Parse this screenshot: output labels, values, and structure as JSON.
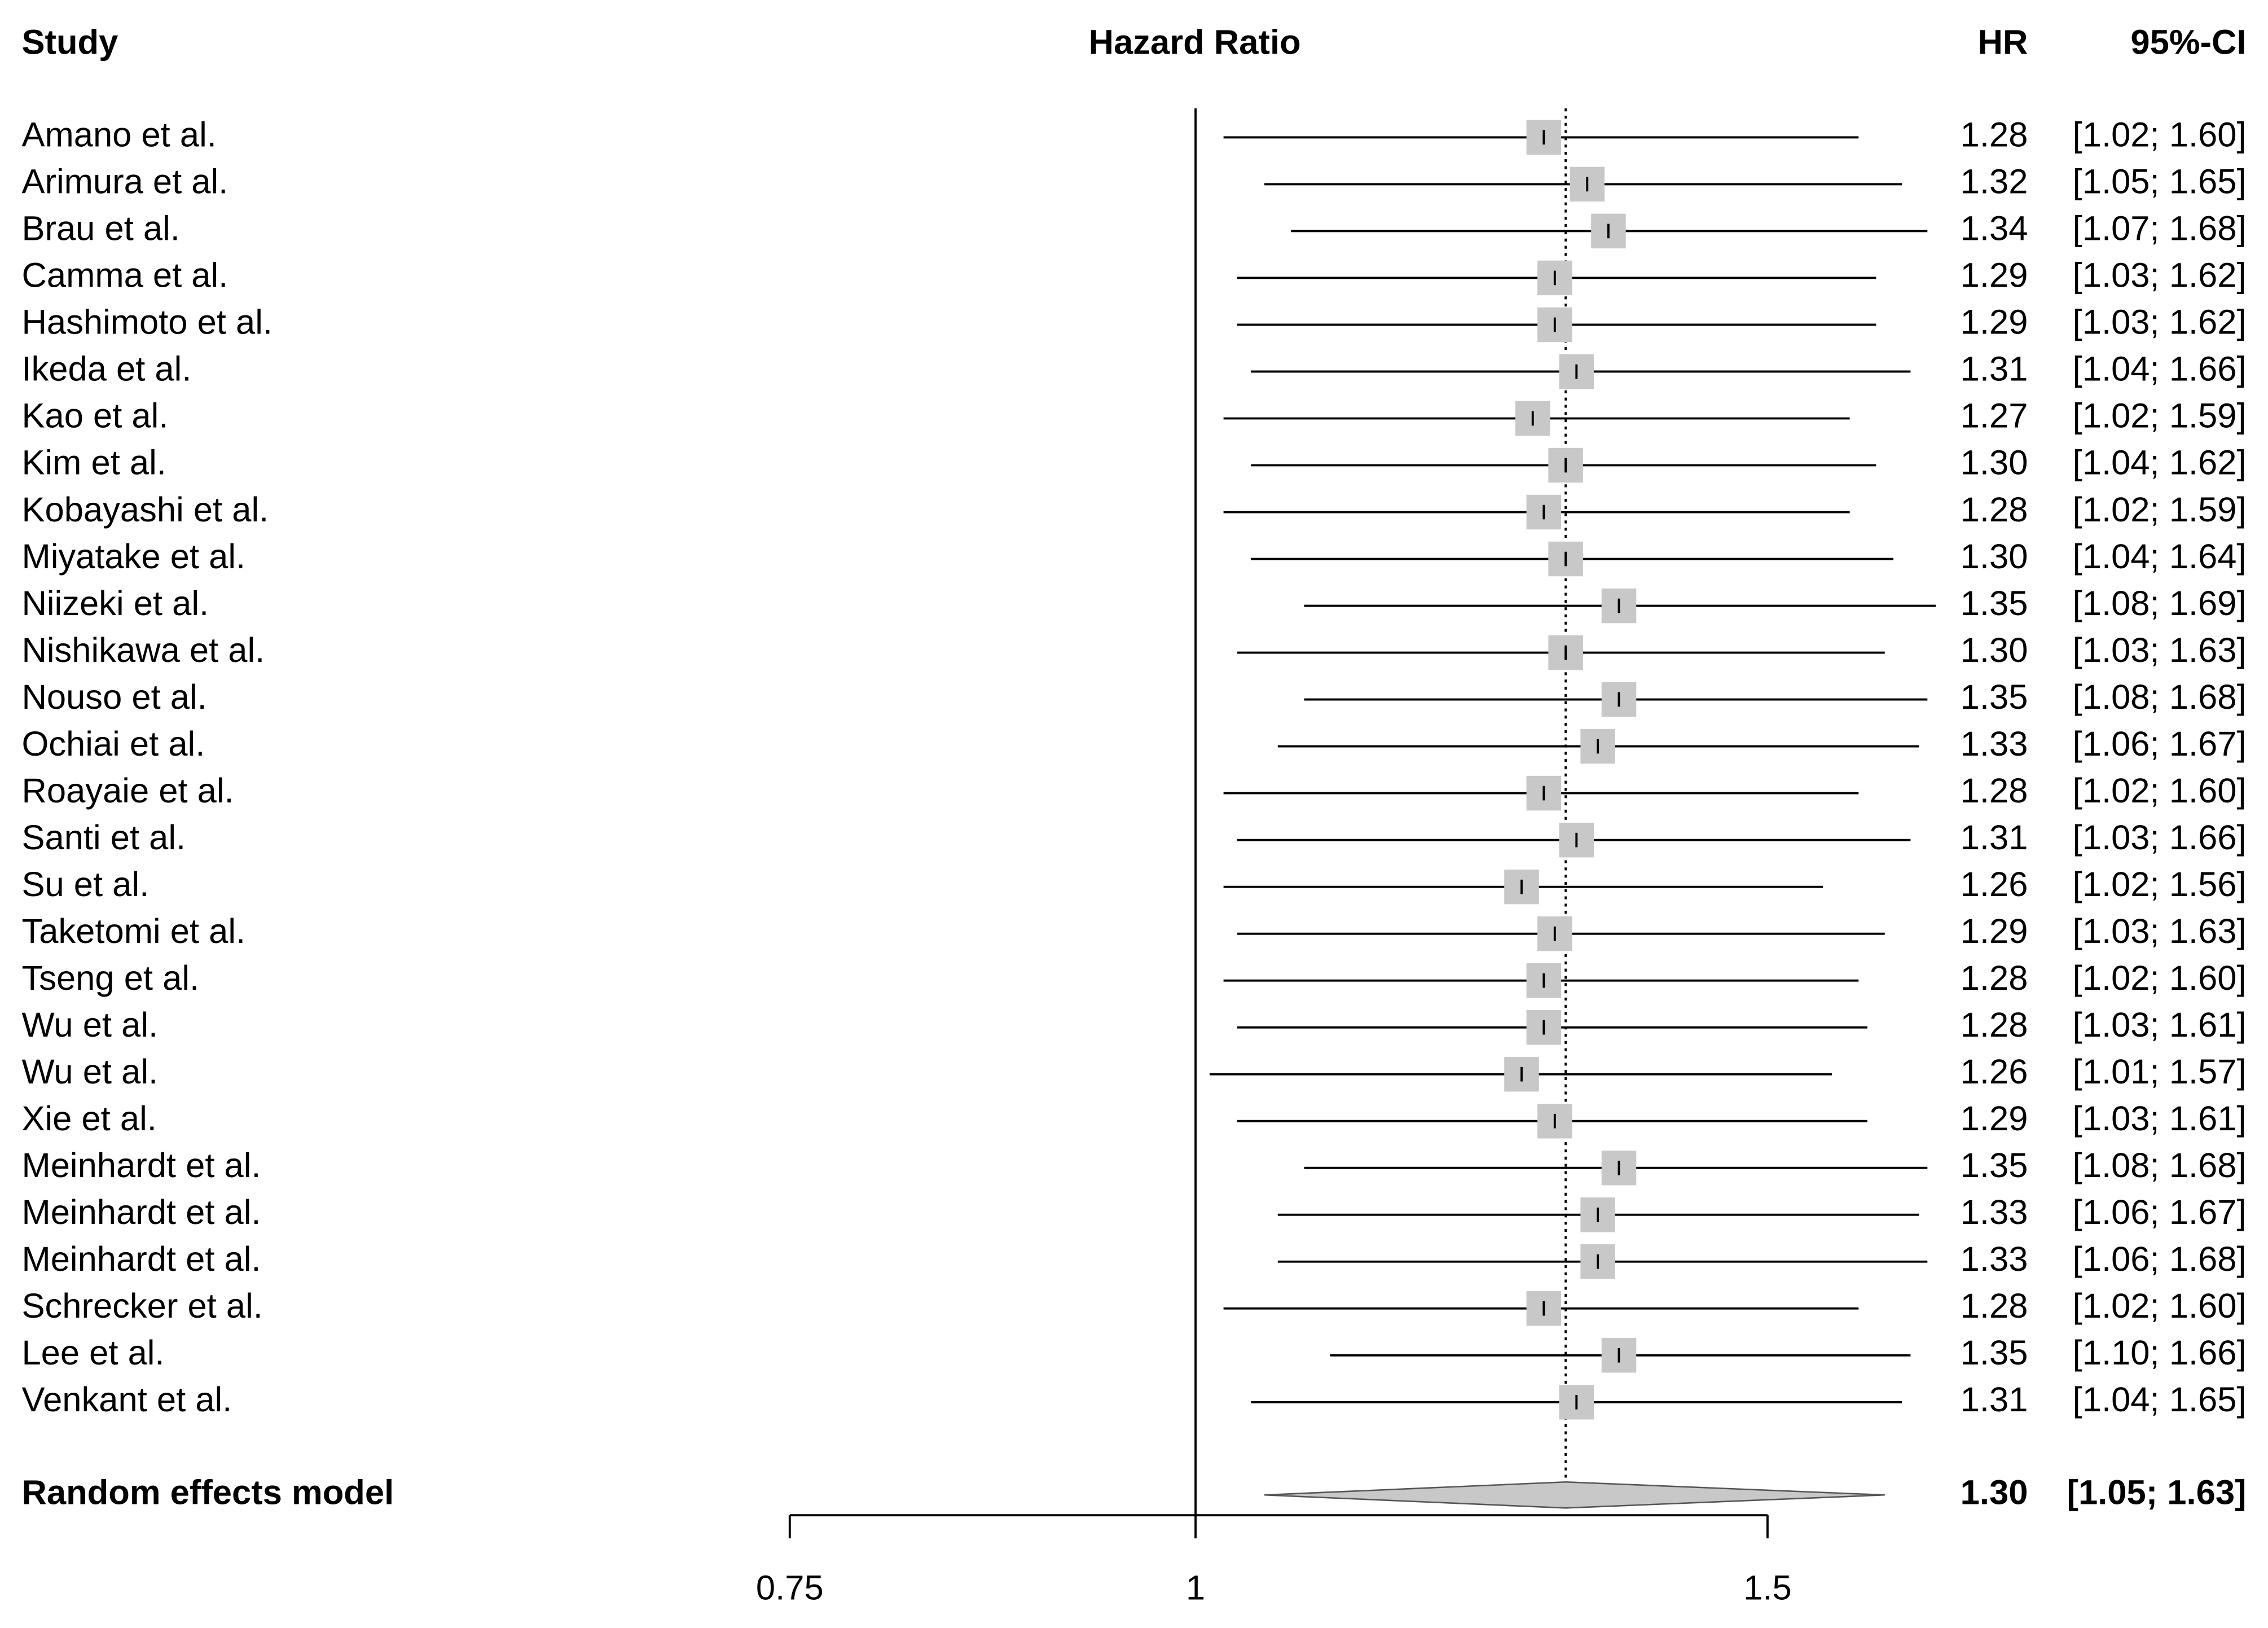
{
  "chart_data": {
    "type": "forest",
    "headers": {
      "study": "Study",
      "axis": "Hazard Ratio",
      "value": "HR",
      "ci": "95%-CI"
    },
    "categories": [
      "Amano et al.",
      "Arimura et al.",
      "Brau et al.",
      "Camma et al.",
      "Hashimoto et al.",
      "Ikeda et al.",
      "Kao et al.",
      "Kim et al.",
      "Kobayashi et al.",
      "Miyatake et al.",
      "Niizeki et al.",
      "Nishikawa et al.",
      "Nouso et al.",
      "Ochiai et al.",
      "Roayaie et al.",
      "Santi et al.",
      "Su et al.",
      "Taketomi et al.",
      "Tseng et al.",
      "Wu et al.",
      "Wu et al.",
      "Xie et al.",
      "Meinhardt et al.",
      "Meinhardt et al.",
      "Meinhardt et al.",
      "Schrecker et al.",
      "Lee et al.",
      "Venkant et al."
    ],
    "values": [
      1.28,
      1.32,
      1.34,
      1.29,
      1.29,
      1.31,
      1.27,
      1.3,
      1.28,
      1.3,
      1.35,
      1.3,
      1.35,
      1.33,
      1.28,
      1.31,
      1.26,
      1.29,
      1.28,
      1.28,
      1.26,
      1.29,
      1.35,
      1.33,
      1.33,
      1.28,
      1.35,
      1.31
    ],
    "lower": [
      1.02,
      1.05,
      1.07,
      1.03,
      1.03,
      1.04,
      1.02,
      1.04,
      1.02,
      1.04,
      1.08,
      1.03,
      1.08,
      1.06,
      1.02,
      1.03,
      1.02,
      1.03,
      1.02,
      1.03,
      1.01,
      1.03,
      1.08,
      1.06,
      1.06,
      1.02,
      1.1,
      1.04
    ],
    "upper": [
      1.6,
      1.65,
      1.68,
      1.62,
      1.62,
      1.66,
      1.59,
      1.62,
      1.59,
      1.64,
      1.69,
      1.63,
      1.68,
      1.67,
      1.6,
      1.66,
      1.56,
      1.63,
      1.6,
      1.61,
      1.57,
      1.61,
      1.68,
      1.67,
      1.68,
      1.6,
      1.66,
      1.65
    ],
    "value_labels": [
      "1.28",
      "1.32",
      "1.34",
      "1.29",
      "1.29",
      "1.31",
      "1.27",
      "1.30",
      "1.28",
      "1.30",
      "1.35",
      "1.30",
      "1.35",
      "1.33",
      "1.28",
      "1.31",
      "1.26",
      "1.29",
      "1.28",
      "1.28",
      "1.26",
      "1.29",
      "1.35",
      "1.33",
      "1.33",
      "1.28",
      "1.35",
      "1.31"
    ],
    "ci_labels": [
      "[1.02; 1.60]",
      "[1.05; 1.65]",
      "[1.07; 1.68]",
      "[1.03; 1.62]",
      "[1.03; 1.62]",
      "[1.04; 1.66]",
      "[1.02; 1.59]",
      "[1.04; 1.62]",
      "[1.02; 1.59]",
      "[1.04; 1.64]",
      "[1.08; 1.69]",
      "[1.03; 1.63]",
      "[1.08; 1.68]",
      "[1.06; 1.67]",
      "[1.02; 1.60]",
      "[1.03; 1.66]",
      "[1.02; 1.56]",
      "[1.03; 1.63]",
      "[1.02; 1.60]",
      "[1.03; 1.61]",
      "[1.01; 1.57]",
      "[1.03; 1.61]",
      "[1.08; 1.68]",
      "[1.06; 1.67]",
      "[1.06; 1.68]",
      "[1.02; 1.60]",
      "[1.10; 1.66]",
      "[1.04; 1.65]"
    ],
    "pooled": {
      "name": "Random effects model",
      "value": 1.3,
      "lower": 1.05,
      "upper": 1.63,
      "value_label": "1.30",
      "ci_label": "[1.05; 1.63]"
    },
    "reference": 1,
    "log_x": true,
    "xlim": [
      0.75,
      1.5
    ],
    "xticks": [
      0.75,
      1,
      1.5
    ],
    "color": "#c8c8c8"
  }
}
